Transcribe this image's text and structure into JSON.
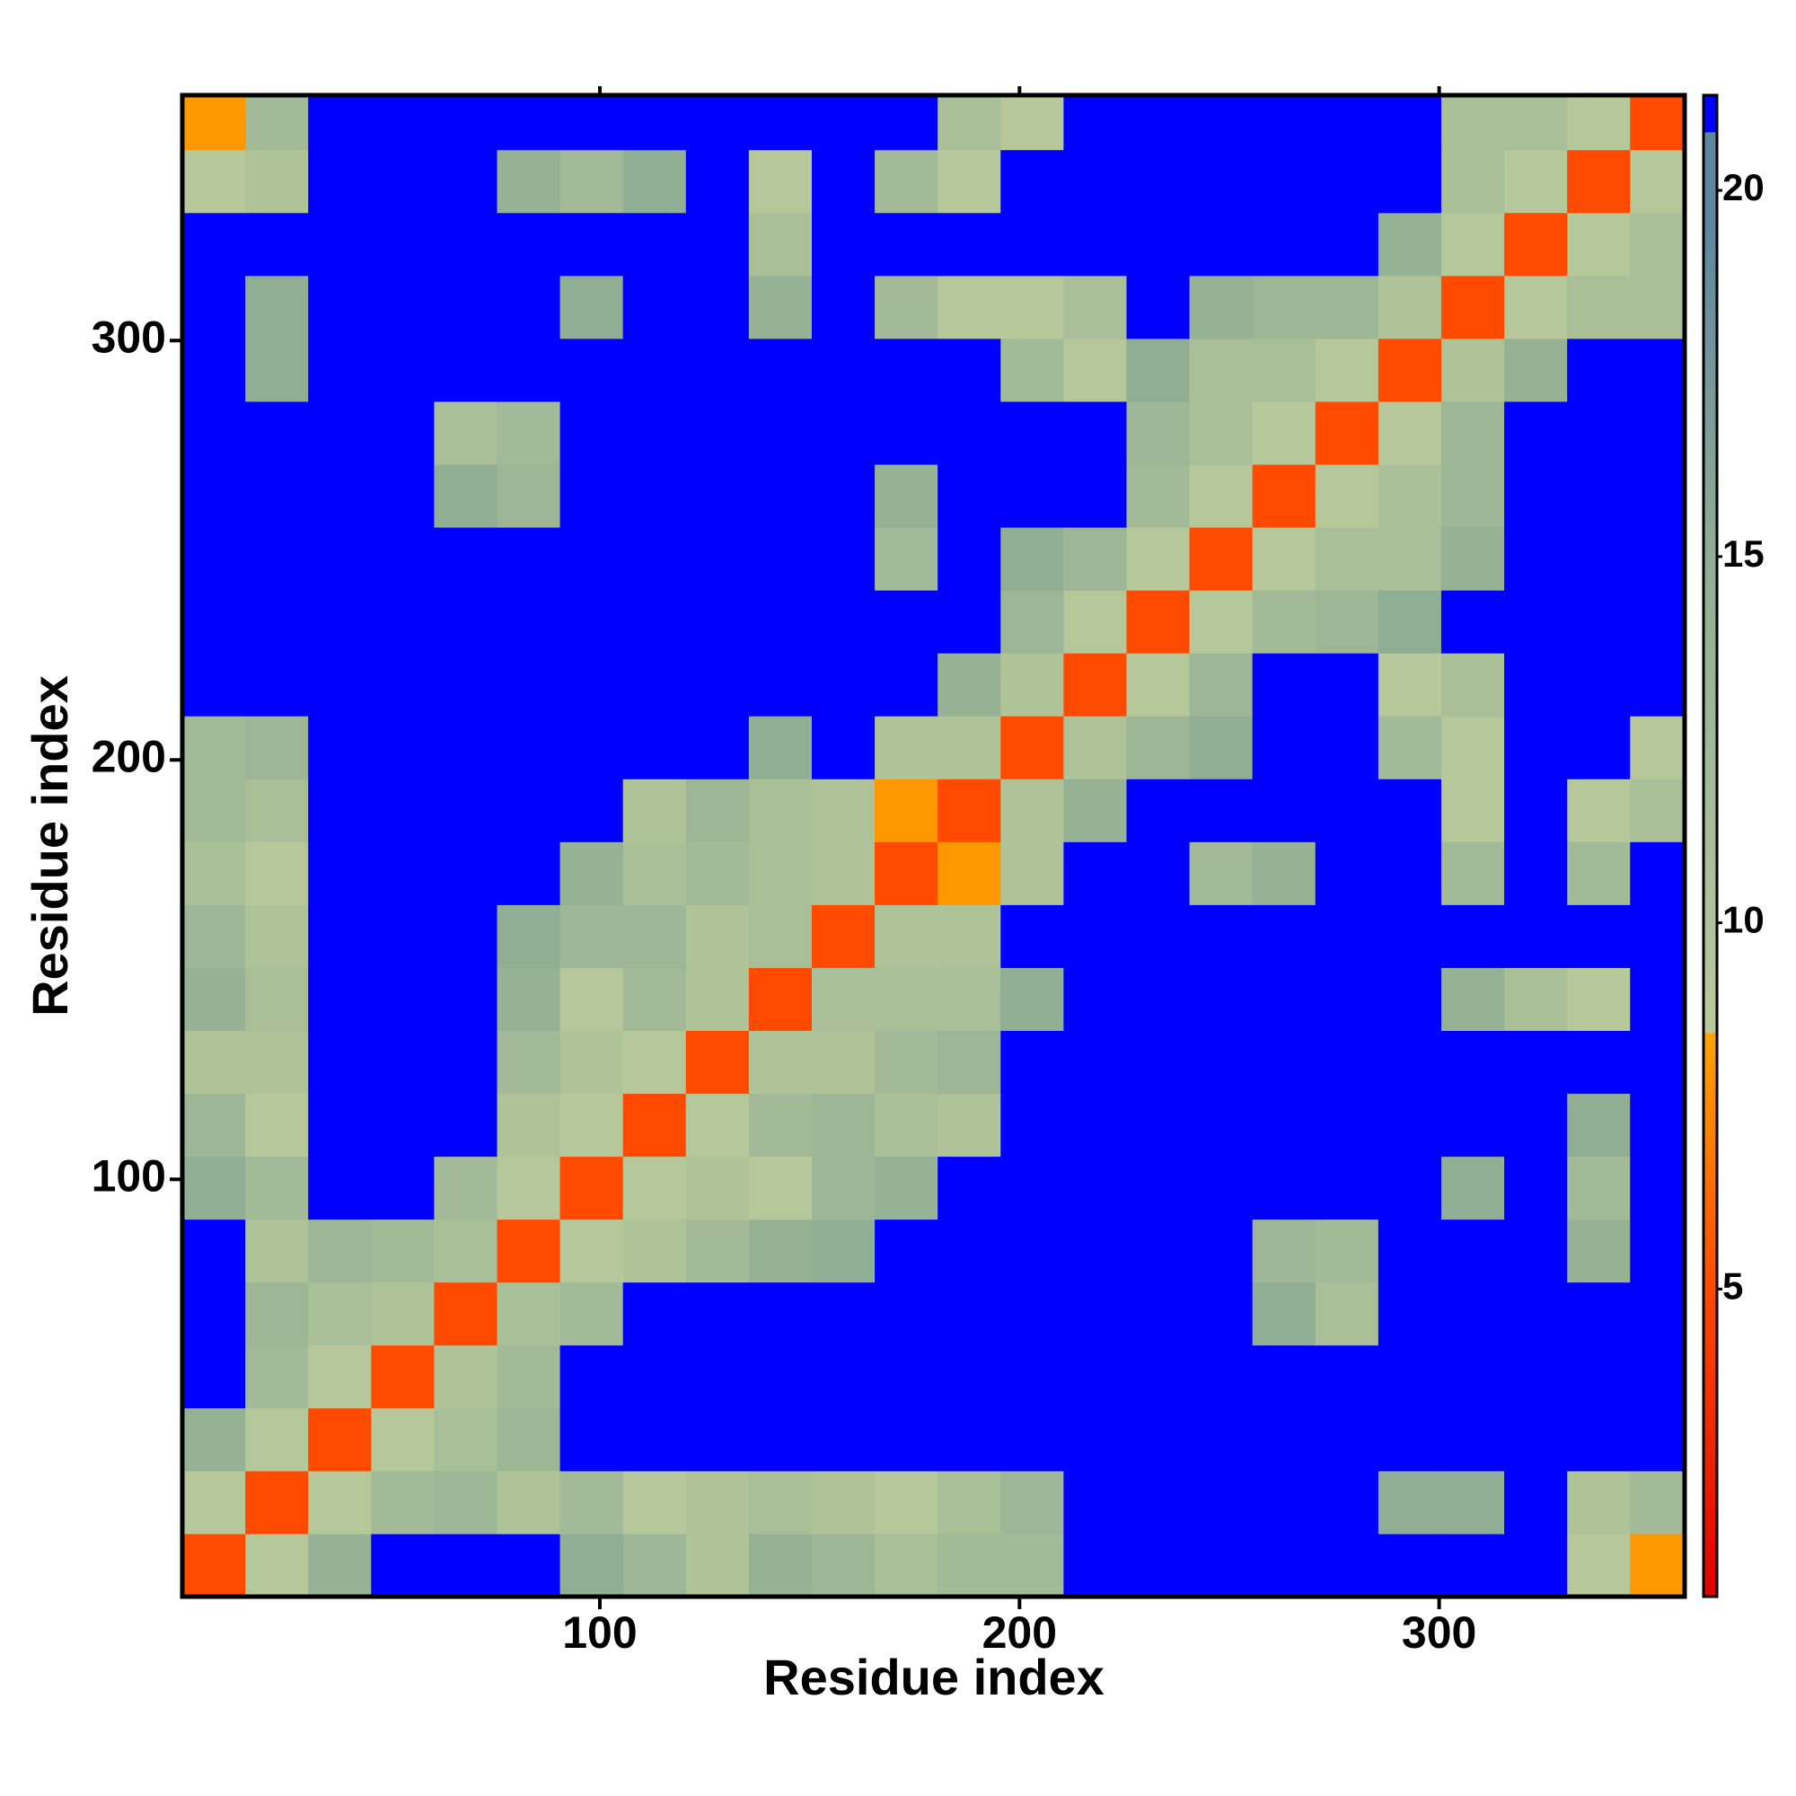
{
  "chart_data": {
    "type": "heatmap",
    "xlabel": "Residue index",
    "ylabel": "Residue index",
    "x": [
      8,
      23,
      38,
      53,
      68,
      83,
      98,
      113,
      128,
      143,
      158,
      173,
      188,
      203,
      218,
      233,
      248,
      263,
      278,
      293,
      308,
      323,
      338,
      353
    ],
    "y": [
      8,
      23,
      38,
      53,
      68,
      83,
      98,
      113,
      128,
      143,
      158,
      173,
      188,
      203,
      218,
      233,
      248,
      263,
      278,
      293,
      308,
      323,
      338,
      353
    ],
    "z": [
      [
        5,
        9,
        14,
        21,
        21,
        21,
        15,
        13,
        10,
        14,
        13,
        11,
        12,
        12,
        21,
        21,
        21,
        21,
        21,
        21,
        21,
        21,
        9,
        8
      ],
      [
        9,
        5,
        9,
        12,
        13,
        10,
        12,
        9,
        10,
        11,
        10,
        9,
        11,
        13,
        21,
        21,
        21,
        21,
        21,
        15,
        15,
        21,
        10,
        12
      ],
      [
        14,
        9,
        5,
        9,
        11,
        13,
        21,
        21,
        21,
        21,
        21,
        21,
        21,
        21,
        21,
        21,
        21,
        21,
        21,
        21,
        21,
        21,
        21,
        21
      ],
      [
        21,
        12,
        9,
        5,
        10,
        12,
        21,
        21,
        21,
        21,
        21,
        21,
        21,
        21,
        21,
        21,
        21,
        21,
        21,
        21,
        21,
        21,
        21,
        21
      ],
      [
        21,
        13,
        11,
        10,
        5,
        11,
        12,
        21,
        21,
        21,
        21,
        21,
        21,
        21,
        21,
        21,
        21,
        15,
        11,
        21,
        21,
        21,
        21,
        21
      ],
      [
        21,
        10,
        13,
        12,
        11,
        5,
        9,
        10,
        12,
        14,
        15,
        21,
        21,
        21,
        21,
        21,
        21,
        13,
        12,
        21,
        21,
        21,
        14,
        21
      ],
      [
        15,
        12,
        21,
        21,
        12,
        9,
        5,
        9,
        10,
        9,
        13,
        14,
        21,
        21,
        21,
        21,
        21,
        21,
        21,
        21,
        15,
        21,
        12,
        21
      ],
      [
        13,
        9,
        21,
        21,
        21,
        10,
        9,
        5,
        9,
        12,
        13,
        11,
        10,
        21,
        21,
        21,
        21,
        21,
        21,
        21,
        21,
        21,
        15,
        21
      ],
      [
        10,
        10,
        21,
        21,
        21,
        12,
        10,
        9,
        5,
        10,
        10,
        12,
        13,
        21,
        21,
        21,
        21,
        21,
        21,
        21,
        21,
        21,
        21,
        21
      ],
      [
        14,
        11,
        21,
        21,
        21,
        14,
        9,
        12,
        10,
        5,
        11,
        11,
        11,
        15,
        21,
        21,
        21,
        21,
        21,
        21,
        14,
        11,
        9,
        21
      ],
      [
        13,
        10,
        21,
        21,
        21,
        15,
        13,
        13,
        10,
        11,
        5,
        10,
        10,
        21,
        21,
        21,
        21,
        21,
        21,
        21,
        21,
        21,
        21,
        21
      ],
      [
        11,
        9,
        21,
        21,
        21,
        21,
        14,
        11,
        12,
        11,
        10,
        5,
        8,
        10,
        21,
        21,
        12,
        14,
        21,
        21,
        12,
        21,
        12,
        21
      ],
      [
        12,
        11,
        21,
        21,
        21,
        21,
        21,
        10,
        13,
        11,
        10,
        8,
        5,
        10,
        14,
        21,
        21,
        21,
        21,
        21,
        9,
        21,
        9,
        11
      ],
      [
        12,
        13,
        21,
        21,
        21,
        21,
        21,
        21,
        21,
        15,
        21,
        10,
        10,
        5,
        10,
        13,
        15,
        21,
        21,
        12,
        9,
        21,
        21,
        9
      ],
      [
        21,
        21,
        21,
        21,
        21,
        21,
        21,
        21,
        21,
        21,
        21,
        21,
        14,
        10,
        5,
        9,
        13,
        21,
        21,
        9,
        11,
        21,
        21,
        21
      ],
      [
        21,
        21,
        21,
        21,
        21,
        21,
        21,
        21,
        21,
        21,
        21,
        21,
        21,
        13,
        9,
        5,
        9,
        12,
        13,
        15,
        21,
        21,
        21,
        21
      ],
      [
        21,
        21,
        21,
        21,
        21,
        21,
        21,
        21,
        21,
        21,
        21,
        12,
        21,
        15,
        13,
        9,
        5,
        9,
        11,
        11,
        14,
        21,
        21,
        21
      ],
      [
        21,
        21,
        21,
        21,
        15,
        13,
        21,
        21,
        21,
        21,
        21,
        14,
        21,
        21,
        21,
        12,
        9,
        5,
        9,
        11,
        13,
        21,
        21,
        21
      ],
      [
        21,
        21,
        21,
        21,
        11,
        12,
        21,
        21,
        21,
        21,
        21,
        21,
        21,
        21,
        21,
        13,
        11,
        9,
        5,
        9,
        13,
        21,
        21,
        21
      ],
      [
        21,
        15,
        21,
        21,
        21,
        21,
        21,
        21,
        21,
        21,
        21,
        21,
        21,
        12,
        9,
        15,
        11,
        11,
        9,
        5,
        10,
        14,
        21,
        21
      ],
      [
        21,
        15,
        21,
        21,
        21,
        21,
        15,
        21,
        21,
        14,
        21,
        12,
        9,
        9,
        11,
        21,
        14,
        13,
        13,
        10,
        5,
        9,
        11,
        11
      ],
      [
        21,
        21,
        21,
        21,
        21,
        21,
        21,
        21,
        21,
        11,
        21,
        21,
        21,
        21,
        21,
        21,
        21,
        21,
        21,
        14,
        9,
        5,
        9,
        11
      ],
      [
        9,
        10,
        21,
        21,
        21,
        14,
        12,
        15,
        21,
        9,
        21,
        12,
        9,
        21,
        21,
        21,
        21,
        21,
        21,
        21,
        11,
        9,
        5,
        9
      ],
      [
        8,
        12,
        21,
        21,
        21,
        21,
        21,
        21,
        21,
        21,
        21,
        21,
        11,
        9,
        21,
        21,
        21,
        21,
        21,
        21,
        11,
        11,
        9,
        5
      ]
    ],
    "xlim": [
      0.5,
      358.5
    ],
    "ylim": [
      0.5,
      358.5
    ],
    "xticks": [
      100,
      200,
      300
    ],
    "yticks": [
      100,
      200,
      300
    ],
    "zlim": [
      0.8,
      21.3
    ],
    "zticks": [
      5,
      10,
      15,
      20
    ],
    "colorscale": [
      [
        0.8,
        "#e00000"
      ],
      [
        5,
        "#ff4a00"
      ],
      [
        8.5,
        "#ffa500"
      ],
      [
        8.5,
        "#b9c99b"
      ],
      [
        15,
        "#8fae94"
      ],
      [
        19.5,
        "#5f86a0"
      ],
      [
        20.8,
        "#5f86a0"
      ],
      [
        20.8,
        "#0000ff"
      ],
      [
        21.3,
        "#0000ff"
      ]
    ]
  }
}
